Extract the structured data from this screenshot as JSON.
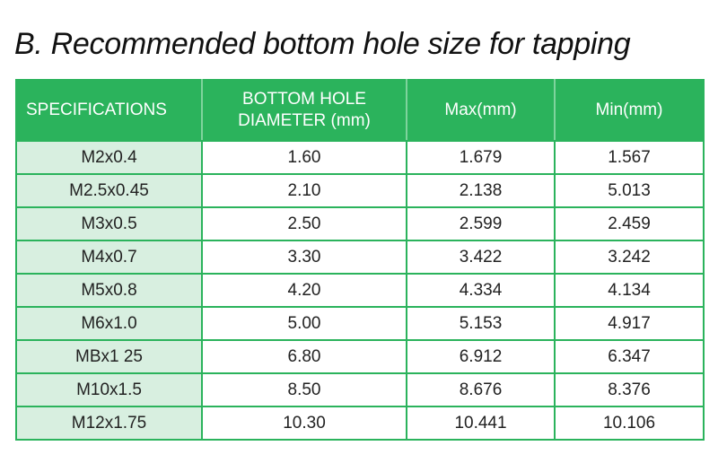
{
  "title": "B. Recommended bottom hole size for tapping",
  "table": {
    "headers": {
      "spec": "SPECIFICATIONS",
      "diameter_line1": "BOTTOM HOLE",
      "diameter_line2": "DIAMETER (mm)",
      "max": "Max(mm)",
      "min": "Min(mm)"
    },
    "rows": [
      {
        "spec": "M2x0.4",
        "diameter": "1.60",
        "max": "1.679",
        "min": "1.567"
      },
      {
        "spec": "M2.5x0.45",
        "diameter": "2.10",
        "max": "2.138",
        "min": "5.013"
      },
      {
        "spec": "M3x0.5",
        "diameter": "2.50",
        "max": "2.599",
        "min": "2.459"
      },
      {
        "spec": "M4x0.7",
        "diameter": "3.30",
        "max": "3.422",
        "min": "3.242"
      },
      {
        "spec": "M5x0.8",
        "diameter": "4.20",
        "max": "4.334",
        "min": "4.134"
      },
      {
        "spec": "M6x1.0",
        "diameter": "5.00",
        "max": "5.153",
        "min": "4.917"
      },
      {
        "spec": "MBx1 25",
        "diameter": "6.80",
        "max": "6.912",
        "min": "6.347"
      },
      {
        "spec": "M10x1.5",
        "diameter": "8.50",
        "max": "8.676",
        "min": "8.376"
      },
      {
        "spec": "M12x1.75",
        "diameter": "10.30",
        "max": "10.441",
        "min": "10.106"
      }
    ]
  },
  "colors": {
    "header_bg": "#2bb35c",
    "spec_cell_bg": "#d8efe0",
    "border": "#2bb35c"
  }
}
